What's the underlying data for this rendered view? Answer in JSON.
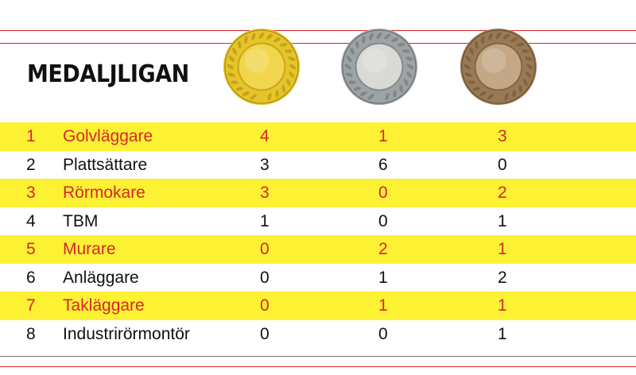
{
  "title": "MEDALJLIGAN",
  "medals": [
    {
      "kind": "gold",
      "icon": "gold-medal-icon",
      "rim": "#e6c42a",
      "center": "#f1d64d",
      "ring": "#a88a10"
    },
    {
      "kind": "silver",
      "icon": "silver-medal-icon",
      "rim": "#9ea3a6",
      "center": "#d9d9d6",
      "ring": "#6b6f72"
    },
    {
      "kind": "bronze",
      "icon": "bronze-medal-icon",
      "rim": "#9a7a55",
      "center": "#c4a784",
      "ring": "#6a5034"
    }
  ],
  "colors": {
    "highlight_bg": "#fdf133",
    "highlight_text": "#d8262c",
    "text": "#111111",
    "rule_red": "#d8262c"
  },
  "rows": [
    {
      "rank": "1",
      "name": "Golvläggare",
      "gold": "4",
      "silver": "1",
      "bronze": "3"
    },
    {
      "rank": "2",
      "name": "Plattsättare",
      "gold": "3",
      "silver": "6",
      "bronze": "0"
    },
    {
      "rank": "3",
      "name": "Rörmokare",
      "gold": "3",
      "silver": "0",
      "bronze": "2"
    },
    {
      "rank": "4",
      "name": "TBM",
      "gold": "1",
      "silver": "0",
      "bronze": "1"
    },
    {
      "rank": "5",
      "name": "Murare",
      "gold": "0",
      "silver": "2",
      "bronze": "1"
    },
    {
      "rank": "6",
      "name": "Anläggare",
      "gold": "0",
      "silver": "1",
      "bronze": "2"
    },
    {
      "rank": "7",
      "name": "Takläggare",
      "gold": "0",
      "silver": "1",
      "bronze": "1"
    },
    {
      "rank": "8",
      "name": "Industrirörmontör",
      "gold": "0",
      "silver": "0",
      "bronze": "1"
    }
  ]
}
